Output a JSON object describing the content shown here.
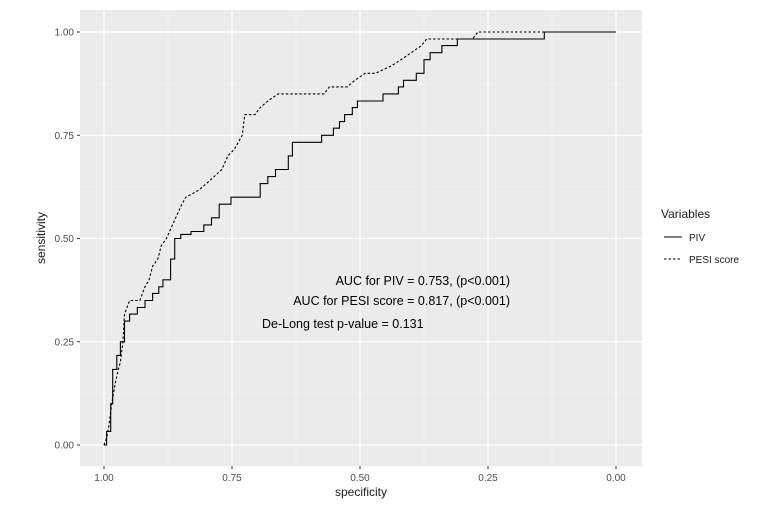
{
  "chart_data": {
    "type": "line",
    "title": "",
    "xlabel": "specificity",
    "ylabel": "sensitivity",
    "x_reversed": true,
    "xlim": [
      1.0,
      0.0
    ],
    "ylim": [
      0.0,
      1.0
    ],
    "x_ticks": [
      1.0,
      0.75,
      0.5,
      0.25,
      0.0
    ],
    "x_tick_labels": [
      "1.00",
      "0.75",
      "0.50",
      "0.25",
      "0.00"
    ],
    "y_ticks": [
      0.0,
      0.25,
      0.5,
      0.75,
      1.0
    ],
    "y_tick_labels": [
      "0.00",
      "0.25",
      "0.50",
      "0.75",
      "1.00"
    ],
    "grid": true,
    "legend": {
      "title": "Variables",
      "placement": "right"
    },
    "series": [
      {
        "name": "PIV",
        "line_style": "solid",
        "color": "#000000",
        "points": [
          [
            1.0,
            0.0
          ],
          [
            0.995,
            0.0
          ],
          [
            0.995,
            0.033
          ],
          [
            0.987,
            0.033
          ],
          [
            0.987,
            0.1
          ],
          [
            0.983,
            0.1
          ],
          [
            0.983,
            0.183
          ],
          [
            0.975,
            0.183
          ],
          [
            0.975,
            0.217
          ],
          [
            0.968,
            0.217
          ],
          [
            0.968,
            0.25
          ],
          [
            0.96,
            0.25
          ],
          [
            0.96,
            0.3
          ],
          [
            0.95,
            0.3
          ],
          [
            0.95,
            0.317
          ],
          [
            0.935,
            0.317
          ],
          [
            0.935,
            0.333
          ],
          [
            0.92,
            0.333
          ],
          [
            0.92,
            0.35
          ],
          [
            0.905,
            0.35
          ],
          [
            0.905,
            0.367
          ],
          [
            0.893,
            0.367
          ],
          [
            0.893,
            0.383
          ],
          [
            0.885,
            0.383
          ],
          [
            0.885,
            0.4
          ],
          [
            0.87,
            0.4
          ],
          [
            0.87,
            0.45
          ],
          [
            0.862,
            0.45
          ],
          [
            0.862,
            0.5
          ],
          [
            0.85,
            0.5
          ],
          [
            0.85,
            0.51
          ],
          [
            0.83,
            0.51
          ],
          [
            0.83,
            0.517
          ],
          [
            0.805,
            0.517
          ],
          [
            0.805,
            0.533
          ],
          [
            0.79,
            0.533
          ],
          [
            0.79,
            0.55
          ],
          [
            0.775,
            0.55
          ],
          [
            0.775,
            0.583
          ],
          [
            0.752,
            0.583
          ],
          [
            0.752,
            0.6
          ],
          [
            0.695,
            0.6
          ],
          [
            0.695,
            0.633
          ],
          [
            0.68,
            0.633
          ],
          [
            0.68,
            0.65
          ],
          [
            0.665,
            0.65
          ],
          [
            0.665,
            0.667
          ],
          [
            0.64,
            0.667
          ],
          [
            0.64,
            0.7
          ],
          [
            0.632,
            0.7
          ],
          [
            0.632,
            0.733
          ],
          [
            0.575,
            0.733
          ],
          [
            0.575,
            0.75
          ],
          [
            0.552,
            0.75
          ],
          [
            0.552,
            0.767
          ],
          [
            0.54,
            0.767
          ],
          [
            0.54,
            0.783
          ],
          [
            0.53,
            0.783
          ],
          [
            0.53,
            0.8
          ],
          [
            0.515,
            0.8
          ],
          [
            0.515,
            0.817
          ],
          [
            0.505,
            0.817
          ],
          [
            0.505,
            0.833
          ],
          [
            0.455,
            0.833
          ],
          [
            0.455,
            0.85
          ],
          [
            0.425,
            0.85
          ],
          [
            0.425,
            0.867
          ],
          [
            0.415,
            0.867
          ],
          [
            0.415,
            0.883
          ],
          [
            0.39,
            0.883
          ],
          [
            0.39,
            0.9
          ],
          [
            0.375,
            0.9
          ],
          [
            0.375,
            0.933
          ],
          [
            0.363,
            0.933
          ],
          [
            0.363,
            0.95
          ],
          [
            0.34,
            0.95
          ],
          [
            0.34,
            0.967
          ],
          [
            0.31,
            0.967
          ],
          [
            0.31,
            0.983
          ],
          [
            0.14,
            0.983
          ],
          [
            0.14,
            1.0
          ],
          [
            0.0,
            1.0
          ]
        ]
      },
      {
        "name": "PESI score",
        "line_style": "dashed",
        "color": "#000000",
        "points": [
          [
            1.0,
            0.0
          ],
          [
            0.995,
            0.017
          ],
          [
            0.99,
            0.05
          ],
          [
            0.985,
            0.1
          ],
          [
            0.978,
            0.15
          ],
          [
            0.972,
            0.183
          ],
          [
            0.968,
            0.2
          ],
          [
            0.963,
            0.25
          ],
          [
            0.96,
            0.317
          ],
          [
            0.955,
            0.333
          ],
          [
            0.95,
            0.35
          ],
          [
            0.93,
            0.35
          ],
          [
            0.92,
            0.383
          ],
          [
            0.912,
            0.4
          ],
          [
            0.905,
            0.433
          ],
          [
            0.895,
            0.45
          ],
          [
            0.888,
            0.483
          ],
          [
            0.878,
            0.5
          ],
          [
            0.872,
            0.517
          ],
          [
            0.86,
            0.55
          ],
          [
            0.848,
            0.583
          ],
          [
            0.84,
            0.6
          ],
          [
            0.815,
            0.617
          ],
          [
            0.8,
            0.633
          ],
          [
            0.785,
            0.65
          ],
          [
            0.77,
            0.667
          ],
          [
            0.758,
            0.7
          ],
          [
            0.745,
            0.717
          ],
          [
            0.73,
            0.75
          ],
          [
            0.725,
            0.8
          ],
          [
            0.705,
            0.8
          ],
          [
            0.695,
            0.817
          ],
          [
            0.68,
            0.833
          ],
          [
            0.66,
            0.85
          ],
          [
            0.57,
            0.85
          ],
          [
            0.56,
            0.867
          ],
          [
            0.525,
            0.867
          ],
          [
            0.51,
            0.883
          ],
          [
            0.49,
            0.9
          ],
          [
            0.47,
            0.9
          ],
          [
            0.44,
            0.917
          ],
          [
            0.42,
            0.933
          ],
          [
            0.4,
            0.95
          ],
          [
            0.38,
            0.967
          ],
          [
            0.37,
            0.983
          ],
          [
            0.28,
            0.983
          ],
          [
            0.27,
            1.0
          ],
          [
            0.0,
            1.0
          ]
        ]
      }
    ],
    "annotations": [
      "AUC for PIV = 0.753,  (p<0.001)",
      "AUC for PESI score = 0.817,  (p<0.001)",
      "De-Long test p-value = 0.131"
    ],
    "colors": {
      "panel_background": "#ebebeb",
      "major_grid": "#ffffff",
      "minor_grid": "#f5f5f5",
      "line": "#000000"
    }
  }
}
